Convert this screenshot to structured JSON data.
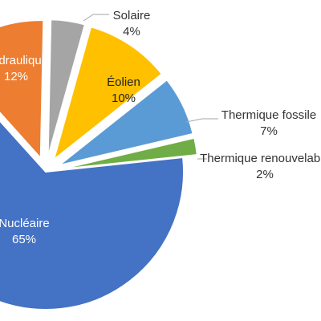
{
  "chart_data": {
    "type": "pie",
    "title": "",
    "slices": [
      {
        "label": "Nucléaire",
        "value": 65,
        "pct_label": "65%",
        "color": "#4472C4",
        "label_color": "#ffffff"
      },
      {
        "label": "Hydraulique",
        "value": 12,
        "pct_label": "12%",
        "color": "#ED7D31",
        "label_color": "#ffffff"
      },
      {
        "label": "Solaire",
        "value": 4,
        "pct_label": "4%",
        "color": "#A5A5A5",
        "label_color": "#333333"
      },
      {
        "label": "Éolien",
        "value": 10,
        "pct_label": "10%",
        "color": "#FFC000",
        "label_color": "#222222"
      },
      {
        "label": "Thermique fossile",
        "value": 7,
        "pct_label": "7%",
        "color": "#5B9BD5",
        "label_color": "#333333"
      },
      {
        "label": "Thermique renouvelable",
        "value": 2,
        "pct_label": "2%",
        "color": "#70AD47",
        "label_color": "#333333"
      }
    ],
    "legend": "none"
  }
}
